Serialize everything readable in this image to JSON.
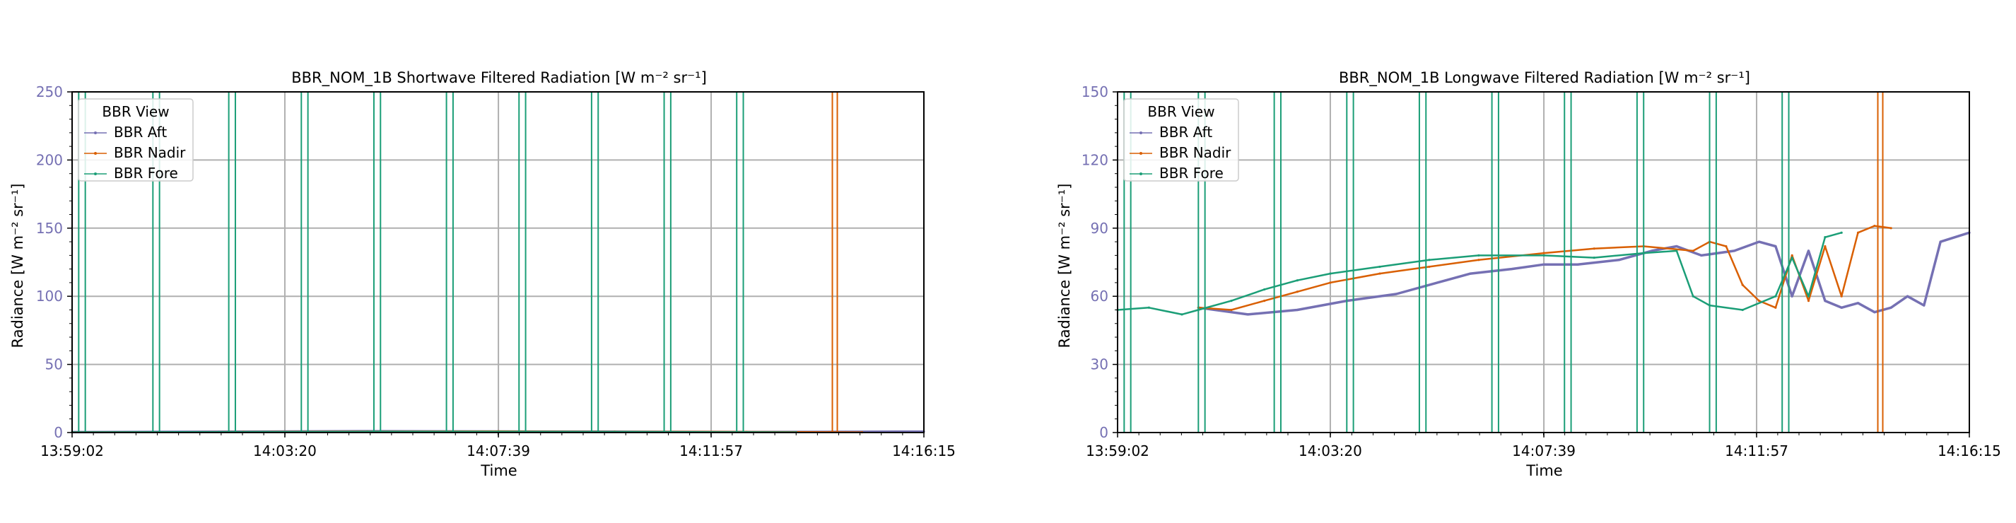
{
  "chart_data": [
    {
      "type": "line",
      "title": "BBR_NOM_1B Shortwave Filtered Radiation [W m⁻² sr⁻¹]",
      "xlabel": "Time",
      "ylabel": "Radiance [W m⁻² sr⁻¹]",
      "x_tick_labels": [
        "13:59:02",
        "14:03:20",
        "14:07:39",
        "14:11:57",
        "14:16:15"
      ],
      "xlim": [
        "13:59:02",
        "14:16:15"
      ],
      "y_ticks": [
        0,
        50,
        100,
        150,
        200,
        250
      ],
      "ylim": [
        0,
        250
      ],
      "grid": true,
      "legend": {
        "title": "BBR View",
        "placement": "top-left"
      },
      "series": [
        {
          "name": "BBR Aft",
          "color": "#7570b3",
          "points": [
            [
              "13:59:02",
              0.3
            ],
            [
              "14:02:30",
              0.6
            ],
            [
              "14:05:00",
              1.0
            ],
            [
              "14:07:39",
              0.8
            ],
            [
              "14:10:00",
              0.6
            ],
            [
              "14:12:50",
              0.4
            ],
            [
              "14:14:40",
              0.5
            ],
            [
              "14:16:15",
              0.7
            ]
          ],
          "spikes": []
        },
        {
          "name": "BBR Nadir",
          "color": "#d95f02",
          "points": [
            [
              "13:59:02",
              0.2
            ],
            [
              "14:02:30",
              0.5
            ],
            [
              "14:05:00",
              0.8
            ],
            [
              "14:07:39",
              0.9
            ],
            [
              "14:10:00",
              0.7
            ],
            [
              "14:12:40",
              0.5
            ],
            [
              "14:14:20",
              0.3
            ],
            [
              "14:15:00",
              0.2
            ]
          ],
          "spikes": [
            "14:14:24",
            "14:14:30"
          ]
        },
        {
          "name": "BBR Fore",
          "color": "#1b9e77",
          "points": [
            [
              "13:59:02",
              0.2
            ],
            [
              "14:02:00",
              0.4
            ],
            [
              "14:05:00",
              0.6
            ],
            [
              "14:07:39",
              0.6
            ],
            [
              "14:10:00",
              0.5
            ],
            [
              "14:12:40",
              0.3
            ],
            [
              "14:13:40",
              0.2
            ]
          ],
          "spikes": [
            "13:59:10",
            "13:59:18",
            "14:00:40",
            "14:00:48",
            "14:02:12",
            "14:02:20",
            "14:03:40",
            "14:03:48",
            "14:05:08",
            "14:05:16",
            "14:06:36",
            "14:06:44",
            "14:08:04",
            "14:08:12",
            "14:09:32",
            "14:09:40",
            "14:11:00",
            "14:11:08",
            "14:12:28",
            "14:12:36"
          ]
        }
      ]
    },
    {
      "type": "line",
      "title": "BBR_NOM_1B Longwave Filtered Radiation [W m⁻² sr⁻¹]",
      "xlabel": "Time",
      "ylabel": "Radiance [W m⁻² sr⁻¹]",
      "x_tick_labels": [
        "13:59:02",
        "14:03:20",
        "14:07:39",
        "14:11:57",
        "14:16:15"
      ],
      "xlim": [
        "13:59:02",
        "14:16:15"
      ],
      "y_ticks": [
        0,
        30,
        60,
        90,
        120,
        150
      ],
      "ylim": [
        0,
        150
      ],
      "grid": true,
      "legend": {
        "title": "BBR View",
        "placement": "top-left"
      },
      "series": [
        {
          "name": "BBR Aft",
          "color": "#7570b3",
          "points": [
            [
              "14:00:40",
              55
            ],
            [
              "14:01:40",
              52
            ],
            [
              "14:02:40",
              54
            ],
            [
              "14:03:40",
              58
            ],
            [
              "14:04:40",
              61
            ],
            [
              "14:05:40",
              67
            ],
            [
              "14:06:10",
              70
            ],
            [
              "14:07:00",
              72
            ],
            [
              "14:07:39",
              74
            ],
            [
              "14:08:20",
              74
            ],
            [
              "14:09:10",
              76
            ],
            [
              "14:09:50",
              80
            ],
            [
              "14:10:20",
              82
            ],
            [
              "14:10:50",
              78
            ],
            [
              "14:11:30",
              80
            ],
            [
              "14:12:00",
              84
            ],
            [
              "14:12:20",
              82
            ],
            [
              "14:12:40",
              60
            ],
            [
              "14:13:00",
              80
            ],
            [
              "14:13:20",
              58
            ],
            [
              "14:13:40",
              55
            ],
            [
              "14:14:00",
              57
            ],
            [
              "14:14:20",
              53
            ],
            [
              "14:14:40",
              55
            ],
            [
              "14:15:00",
              60
            ],
            [
              "14:15:20",
              56
            ],
            [
              "14:15:40",
              84
            ],
            [
              "14:16:15",
              88
            ]
          ],
          "spikes": []
        },
        {
          "name": "BBR Nadir",
          "color": "#d95f02",
          "points": [
            [
              "14:00:40",
              55
            ],
            [
              "14:01:20",
              54
            ],
            [
              "14:02:00",
              58
            ],
            [
              "14:02:40",
              62
            ],
            [
              "14:03:20",
              66
            ],
            [
              "14:04:20",
              70
            ],
            [
              "14:05:20",
              73
            ],
            [
              "14:06:20",
              76
            ],
            [
              "14:07:39",
              79
            ],
            [
              "14:08:40",
              81
            ],
            [
              "14:09:40",
              82
            ],
            [
              "14:10:40",
              80
            ],
            [
              "14:11:00",
              84
            ],
            [
              "14:11:20",
              82
            ],
            [
              "14:11:40",
              65
            ],
            [
              "14:12:00",
              58
            ],
            [
              "14:12:20",
              55
            ],
            [
              "14:12:40",
              78
            ],
            [
              "14:13:00",
              58
            ],
            [
              "14:13:20",
              82
            ],
            [
              "14:13:40",
              60
            ],
            [
              "14:14:00",
              88
            ],
            [
              "14:14:20",
              91
            ],
            [
              "14:14:40",
              90
            ]
          ],
          "spikes": [
            "14:14:24",
            "14:14:30"
          ]
        },
        {
          "name": "BBR Fore",
          "color": "#1b9e77",
          "points": [
            [
              "13:59:02",
              54
            ],
            [
              "13:59:40",
              55
            ],
            [
              "14:00:20",
              52
            ],
            [
              "14:00:40",
              54
            ],
            [
              "14:01:20",
              58
            ],
            [
              "14:02:00",
              63
            ],
            [
              "14:02:40",
              67
            ],
            [
              "14:03:20",
              70
            ],
            [
              "14:04:20",
              73
            ],
            [
              "14:05:20",
              76
            ],
            [
              "14:06:20",
              78
            ],
            [
              "14:07:39",
              78
            ],
            [
              "14:08:40",
              77
            ],
            [
              "14:09:40",
              79
            ],
            [
              "14:10:20",
              80
            ],
            [
              "14:10:40",
              60
            ],
            [
              "14:11:00",
              56
            ],
            [
              "14:11:40",
              54
            ],
            [
              "14:12:20",
              60
            ],
            [
              "14:12:40",
              77
            ],
            [
              "14:13:00",
              60
            ],
            [
              "14:13:20",
              86
            ],
            [
              "14:13:40",
              88
            ]
          ],
          "spikes": [
            "13:59:10",
            "13:59:18",
            "14:00:40",
            "14:00:48",
            "14:02:12",
            "14:02:20",
            "14:03:40",
            "14:03:48",
            "14:05:08",
            "14:05:16",
            "14:06:36",
            "14:06:44",
            "14:08:04",
            "14:08:12",
            "14:09:32",
            "14:09:40",
            "14:11:00",
            "14:11:08",
            "14:12:28",
            "14:12:36"
          ]
        }
      ]
    }
  ]
}
